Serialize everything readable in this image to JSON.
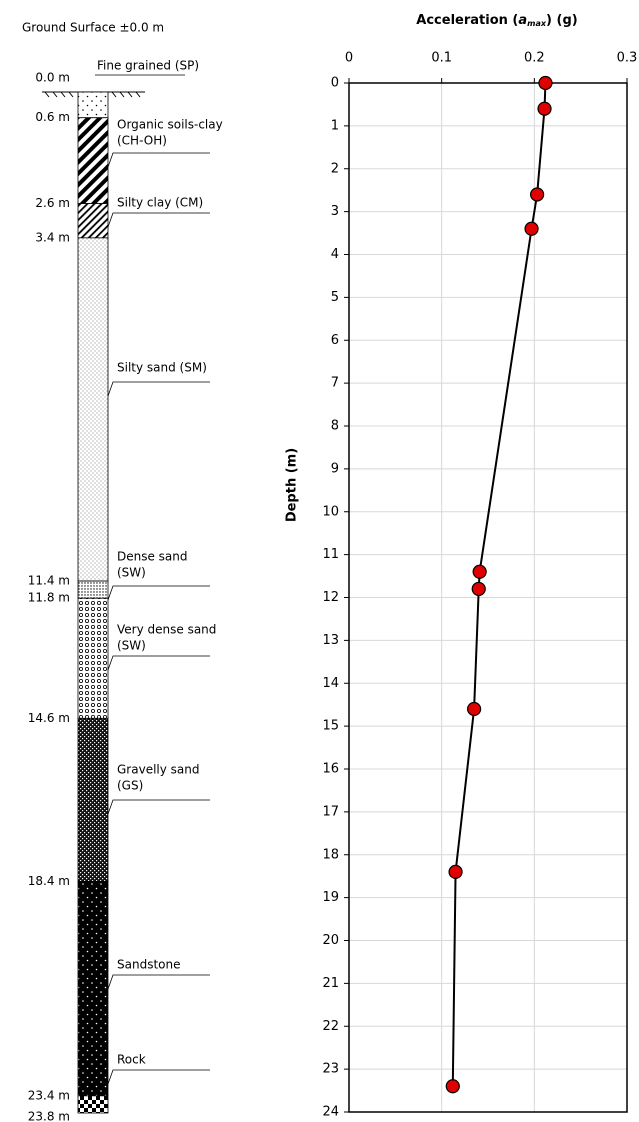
{
  "soil_profile": {
    "surface_label": "Ground Surface ±0.0 m",
    "layers": [
      {
        "top": 0.0,
        "top_label": "0.0 m",
        "name": [
          "Fine grained (SP)"
        ]
      },
      {
        "top": 0.6,
        "top_label": "0.6 m",
        "name": [
          "Organic soils-clay",
          "(CH-OH)"
        ]
      },
      {
        "top": 2.6,
        "top_label": "2.6 m",
        "name": [
          "Silty clay (CM)"
        ]
      },
      {
        "top": 3.4,
        "top_label": "3.4 m",
        "name": [
          "Silty sand (SM)"
        ]
      },
      {
        "top": 11.4,
        "top_label": "11.4 m",
        "name": [
          "Dense sand",
          "(SW)"
        ]
      },
      {
        "top": 11.8,
        "top_label": "11.8 m",
        "name": [
          "Very dense sand",
          "(SW)"
        ]
      },
      {
        "top": 14.6,
        "top_label": "14.6 m",
        "name": [
          "Gravelly sand",
          "(GS)"
        ]
      },
      {
        "top": 18.4,
        "top_label": "18.4 m",
        "name": [
          "Sandstone"
        ]
      },
      {
        "top": 23.4,
        "top_label": "23.4 m",
        "name": [
          "Rock"
        ]
      }
    ],
    "bottom": 23.8,
    "bottom_label": "23.8 m"
  },
  "chart_data": {
    "type": "line",
    "title_parts": [
      "Acceleration (",
      "a",
      "max",
      ") (g)"
    ],
    "y_label": "Depth (m)",
    "x": [
      0.212,
      0.211,
      0.203,
      0.197,
      0.141,
      0.14,
      0.135,
      0.115,
      0.112
    ],
    "y": [
      0,
      0.6,
      2.6,
      3.4,
      11.4,
      11.8,
      14.6,
      18.4,
      23.4
    ],
    "color": "#e00000",
    "markers": true,
    "xlim": [
      0,
      0.3
    ],
    "xticks": [
      0,
      0.1,
      0.2,
      0.3
    ],
    "ylim": [
      0,
      24
    ],
    "yticks": [
      0,
      1,
      2,
      3,
      4,
      5,
      6,
      7,
      8,
      9,
      10,
      11,
      12,
      13,
      14,
      15,
      16,
      17,
      18,
      19,
      20,
      21,
      22,
      23,
      24
    ],
    "grid": true
  }
}
